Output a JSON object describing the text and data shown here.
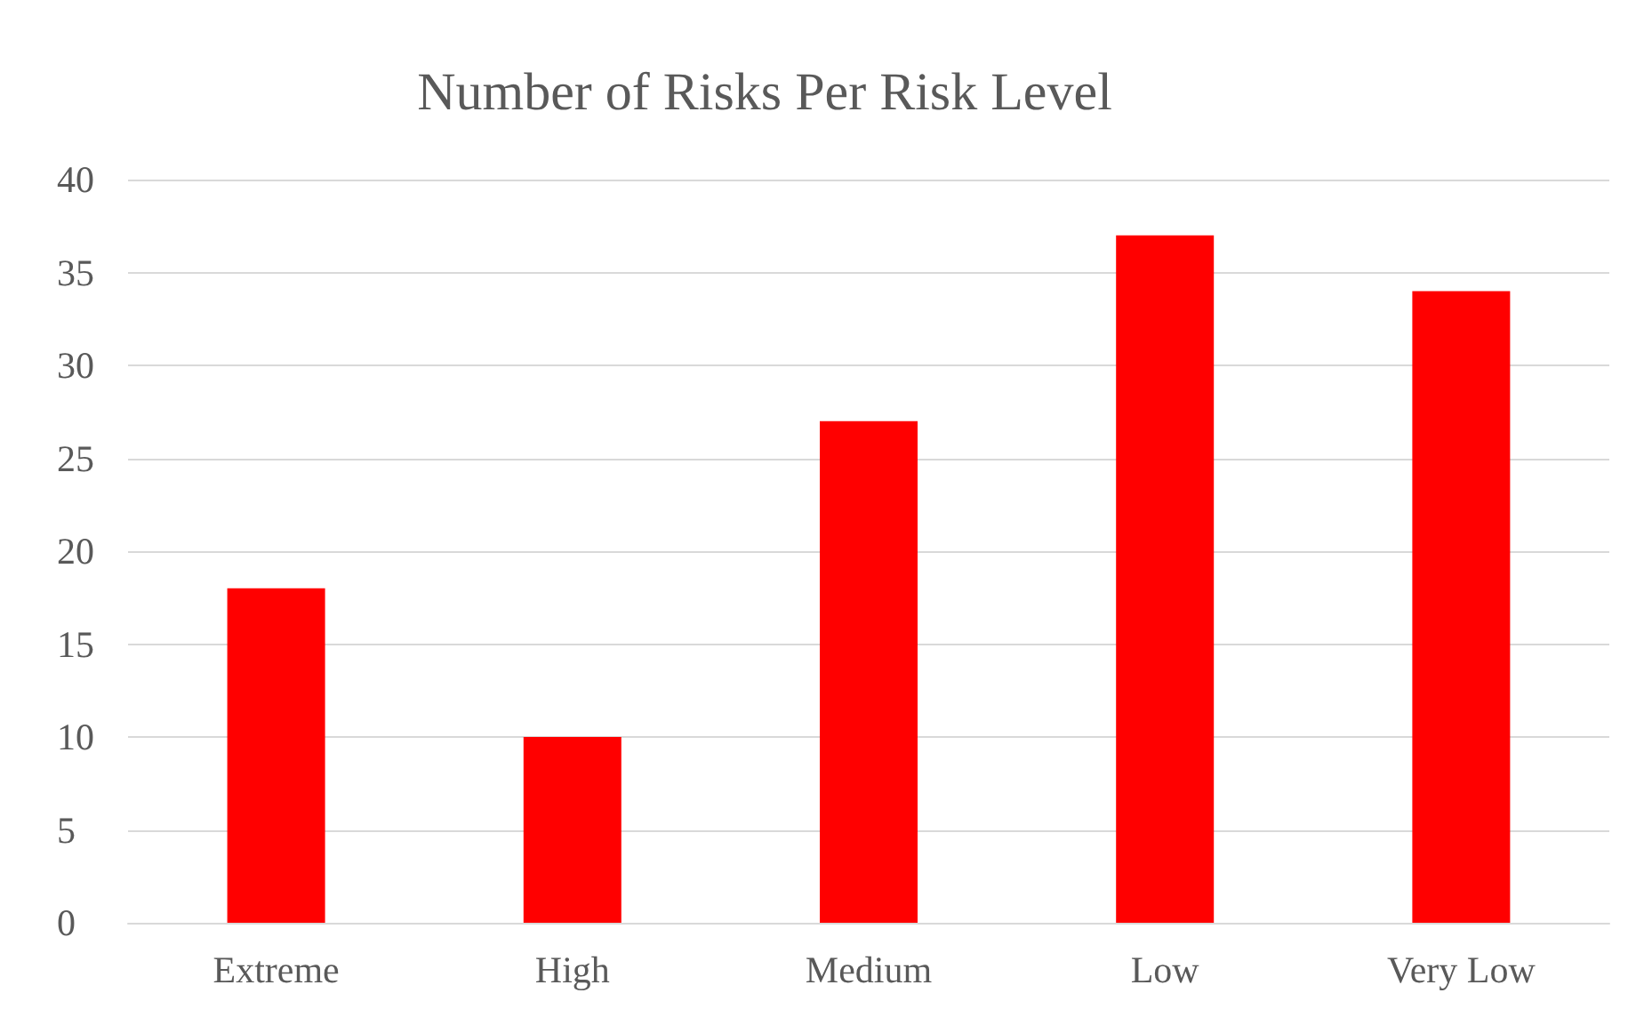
{
  "chart_data": {
    "type": "bar",
    "title": "Number of Risks Per Risk Level",
    "categories": [
      "Extreme",
      "High",
      "Medium",
      "Low",
      "Very Low"
    ],
    "values": [
      18,
      10,
      27,
      37,
      34
    ],
    "color": "#ff0000",
    "ylim": [
      0,
      40
    ],
    "yticks": [
      0,
      5,
      10,
      15,
      20,
      25,
      30,
      35,
      40
    ],
    "grid": "y",
    "legend": false
  }
}
